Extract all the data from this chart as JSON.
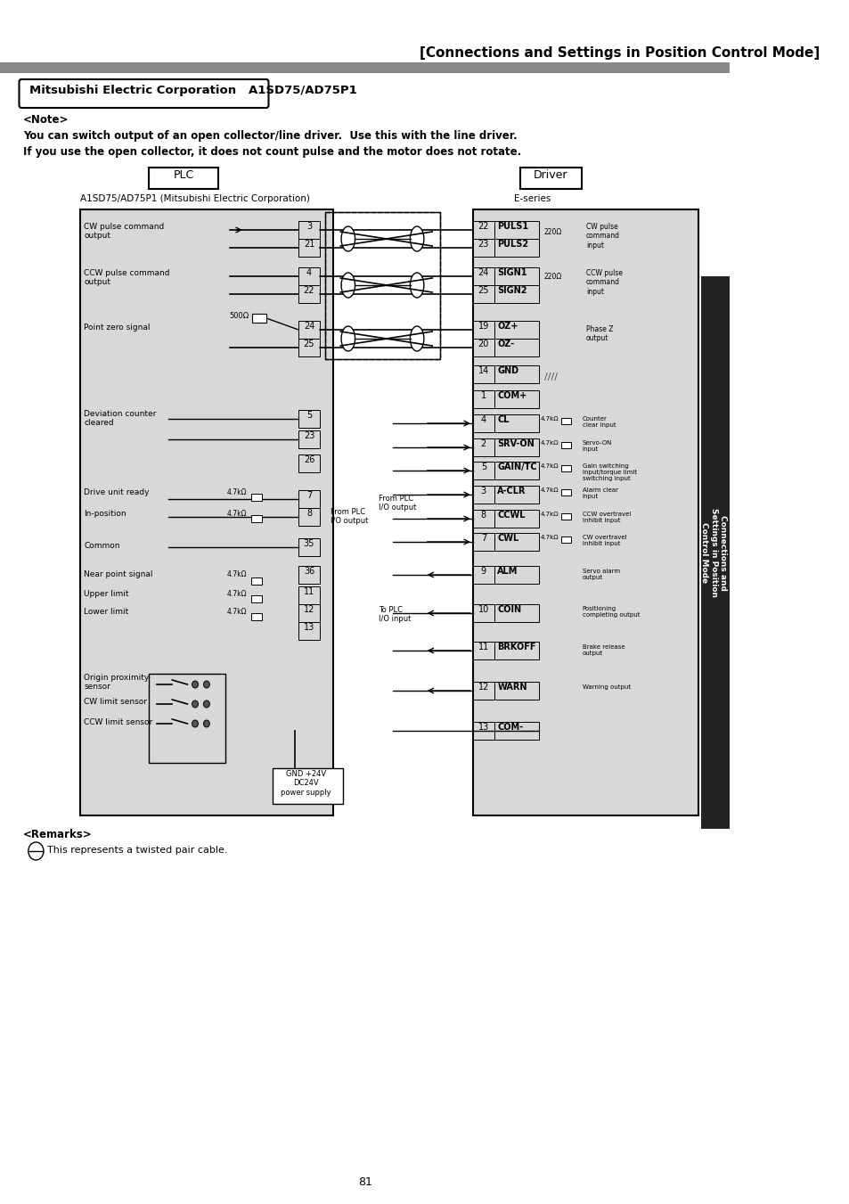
{
  "title": "[Connections and Settings in Position Control Mode]",
  "header_bar_color": "#888888",
  "page_number": "81",
  "box_title": "Mitsubishi Electric Corporation   A1SD75/AD75P1",
  "note_header": "<Note>",
  "note_line1": "You can switch output of an open collector/line driver.  Use this with the line driver.",
  "note_line2": "If you use the open collector, it does not count pulse and the motor does not rotate.",
  "plc_label": "PLC",
  "driver_label": "Driver",
  "plc_sub": "A1SD75/AD75P1 (Mitsubishi Electric Corporation)",
  "driver_sub": "E-series",
  "remarks_header": "<Remarks>",
  "remarks_line": "This represents a twisted pair cable.",
  "bg_color": "#f0f0f0",
  "diagram_bg": "#d0d0d0",
  "driver_bg": "#c8c8c8",
  "sidebar_color": "#000000",
  "sidebar_bg": "#111111",
  "sidebar_text_color": "#ffffff"
}
